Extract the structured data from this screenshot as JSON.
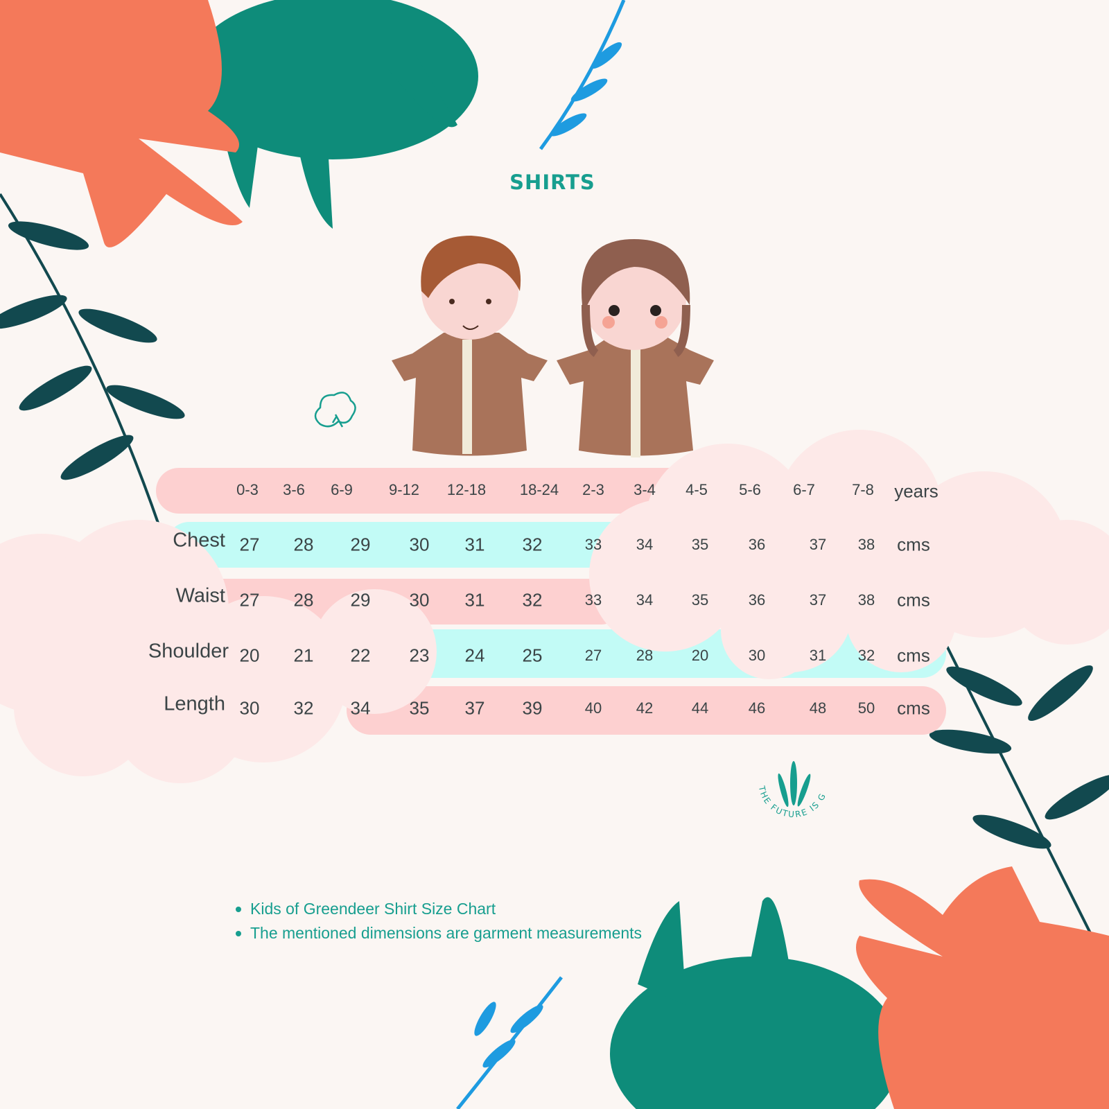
{
  "title": "SHIRTS",
  "table": {
    "header": {
      "ages": [
        "0-3",
        "3-6",
        "6-9",
        "9-12",
        "12-18",
        "18-24",
        "2-3",
        "3-4",
        "4-5",
        "5-6",
        "6-7",
        "7-8"
      ],
      "unit": "years"
    },
    "rows": [
      {
        "label": "Chest",
        "values": [
          "27",
          "28",
          "29",
          "30",
          "31",
          "32",
          "33",
          "34",
          "35",
          "36",
          "37",
          "38"
        ],
        "unit": "cms"
      },
      {
        "label": "Waist",
        "values": [
          "27",
          "28",
          "29",
          "30",
          "31",
          "32",
          "33",
          "34",
          "35",
          "36",
          "37",
          "38"
        ],
        "unit": "cms"
      },
      {
        "label": "Shoulder",
        "values": [
          "20",
          "21",
          "22",
          "23",
          "24",
          "25",
          "27",
          "28",
          "20",
          "30",
          "31",
          "32"
        ],
        "unit": "cms"
      },
      {
        "label": "Length",
        "values": [
          "30",
          "32",
          "34",
          "35",
          "37",
          "39",
          "40",
          "42",
          "44",
          "46",
          "48",
          "50"
        ],
        "unit": "cms"
      }
    ]
  },
  "notes": [
    "Kids of Greendeer Shirt Size Chart",
    "The mentioned dimensions are garment measurements"
  ],
  "logo_text": "THE FUTURE IS GREEN",
  "colors": {
    "accent": "#179e8f",
    "pink_band": "#fdd0d0",
    "cyan_band": "#c2fbf6",
    "cloud": "#fde9e8",
    "orange_leaf": "#f4795a",
    "teal_leaf": "#0e8c7a",
    "dark_leaf": "#12494f",
    "blue_leaf": "#1e9be0"
  }
}
